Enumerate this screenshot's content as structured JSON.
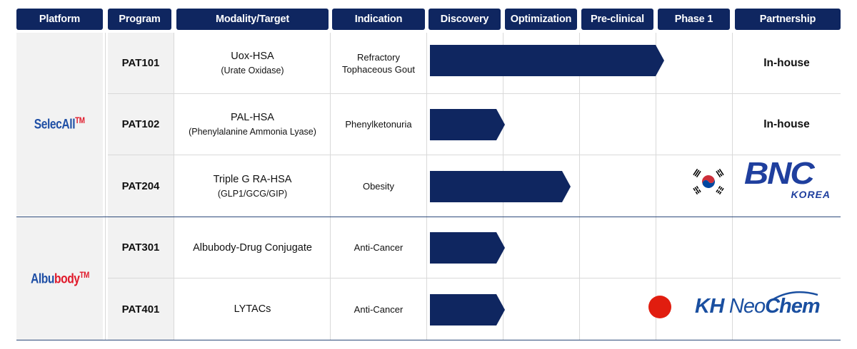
{
  "headers": {
    "platform": "Platform",
    "program": "Program",
    "modality": "Modality/Target",
    "indication": "Indication",
    "discovery": "Discovery",
    "optimization": "Optimization",
    "preclinical": "Pre-clinical",
    "phase1": "Phase 1",
    "partnership": "Partnership"
  },
  "platforms": [
    {
      "name_a": "Selec",
      "name_b": "All",
      "tm": "TM"
    },
    {
      "name_a": "Albu",
      "name_b": "body",
      "tm": "TM"
    }
  ],
  "rows": [
    {
      "program": "PAT101",
      "modality": "Uox-HSA",
      "modality_sub": "(Urate Oxidase)",
      "indication_1": "Refractory",
      "indication_2": "Tophaceous Gout",
      "partnership": "In-house",
      "stage_progress": 0.78
    },
    {
      "program": "PAT102",
      "modality": "PAL-HSA",
      "modality_sub": "(Phenylalanine Ammonia Lyase)",
      "indication_1": "Phenylketonuria",
      "indication_2": "",
      "partnership": "In-house",
      "stage_progress": 0.25
    },
    {
      "program": "PAT204",
      "modality": "Triple G RA-HSA",
      "modality_sub": "(GLP1/GCG/GIP)",
      "indication_1": "Obesity",
      "indication_2": "",
      "partnership": "",
      "partner_logo_line1": "BNC",
      "partner_logo_line2": "KOREA",
      "partner_flag": "korea-flag-icon",
      "stage_progress": 0.47
    },
    {
      "program": "PAT301",
      "modality": "Albubody-Drug Conjugate",
      "modality_sub": "",
      "indication_1": "Anti-Cancer",
      "indication_2": "",
      "partnership": "",
      "stage_progress": 0.25
    },
    {
      "program": "PAT401",
      "modality": "LYTACs",
      "modality_sub": "",
      "indication_1": "Anti-Cancer",
      "indication_2": "",
      "partnership": "",
      "partner_logo_a": "KH",
      "partner_logo_b": "Neo",
      "partner_logo_c": "Chem",
      "partner_flag": "japan-flag-icon",
      "stage_progress": 0.25
    }
  ],
  "colors": {
    "header_bg": "#0f2660",
    "bar": "#0f2660",
    "brand_blue": "#1f4fa5",
    "brand_red": "#e0192a"
  }
}
